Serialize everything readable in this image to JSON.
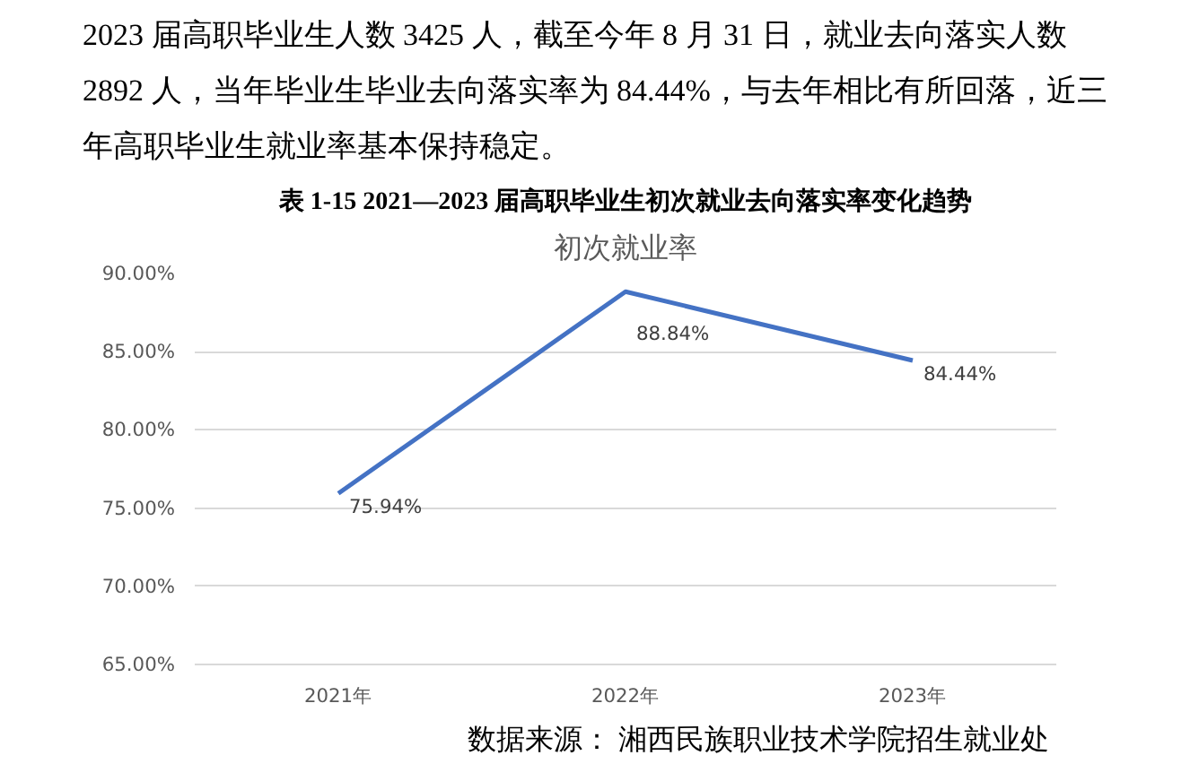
{
  "chart_data": {
    "type": "line",
    "title": "表 1-15 2021—2023 届高职毕业生初次就业去向落实率变化趋势",
    "subtitle": "初次就业率",
    "annotations": [
      "2023 届高职毕业生人数 3425 人，截至今年 8 月 31 日，就业去向落实人数 2892 人，当年毕业生毕业去向落实率为 84.44%，与去年相比有所回落，近三年高职毕业生就业率基本保持稳定。",
      "数据来源：  湘西民族职业技术学院招生就业处"
    ],
    "categories": [
      "2021年",
      "2022年",
      "2023年"
    ],
    "series": [
      {
        "color": "#4472c4",
        "values": [
          75.94,
          88.84,
          84.44
        ],
        "value_labels": [
          "75.94%",
          "88.84%",
          "84.44%"
        ]
      }
    ],
    "ylim": [
      65,
      90
    ],
    "yticks": [
      {
        "value": 65,
        "label": "65.00%"
      },
      {
        "value": 70,
        "label": "70.00%"
      },
      {
        "value": 75,
        "label": "75.00%"
      },
      {
        "value": 80,
        "label": "80.00%"
      },
      {
        "value": 85,
        "label": "85.00%"
      },
      {
        "value": 90,
        "label": "90.00%"
      }
    ],
    "grid": "y",
    "marker": "none",
    "line_style": "solid"
  }
}
